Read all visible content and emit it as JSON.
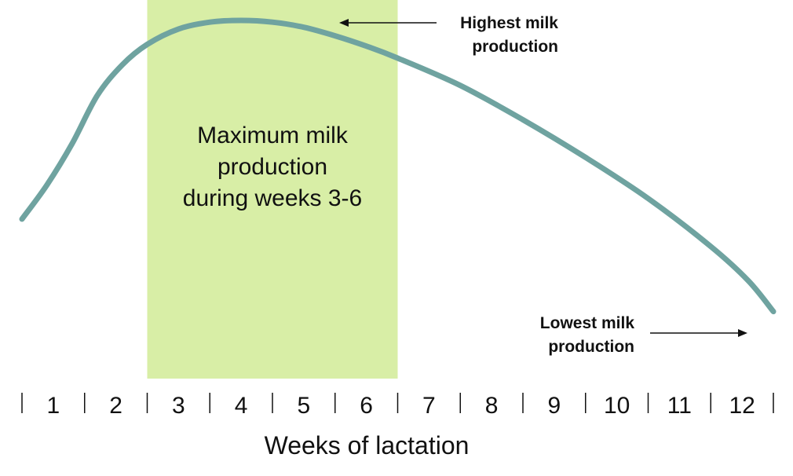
{
  "chart_data": {
    "type": "line",
    "xlabel": "Weeks of lactation",
    "ylabel": "",
    "title": "",
    "categories": [
      "1",
      "2",
      "3",
      "4",
      "5",
      "6",
      "7",
      "8",
      "9",
      "10",
      "11",
      "12"
    ],
    "xlim": [
      0,
      12
    ],
    "ylim": [
      0,
      1
    ],
    "grid": false,
    "series": [
      {
        "x": [
          0,
          0.4,
          0.8,
          1.2,
          1.6,
          2.0,
          2.5,
          3.0,
          3.5,
          4.0,
          4.5,
          5.0,
          5.5,
          6.0,
          7.0,
          8.0,
          9.0,
          10.0,
          11.0,
          11.6,
          12.0
        ],
        "values": [
          0.42,
          0.52,
          0.64,
          0.78,
          0.87,
          0.93,
          0.975,
          0.995,
          1.0,
          0.995,
          0.98,
          0.955,
          0.925,
          0.89,
          0.81,
          0.71,
          0.6,
          0.48,
          0.34,
          0.24,
          0.15
        ],
        "color": "#6fa3a0"
      }
    ],
    "highlight": {
      "from": 2,
      "to": 6,
      "color": "#d8eea6",
      "label_lines": [
        "Maximum milk",
        "production",
        "during weeks 3-6"
      ]
    },
    "annotations": [
      {
        "lines": [
          "Highest milk",
          "production"
        ],
        "arrow": "left"
      },
      {
        "lines": [
          "Lowest milk",
          "production"
        ],
        "arrow": "right"
      }
    ]
  }
}
